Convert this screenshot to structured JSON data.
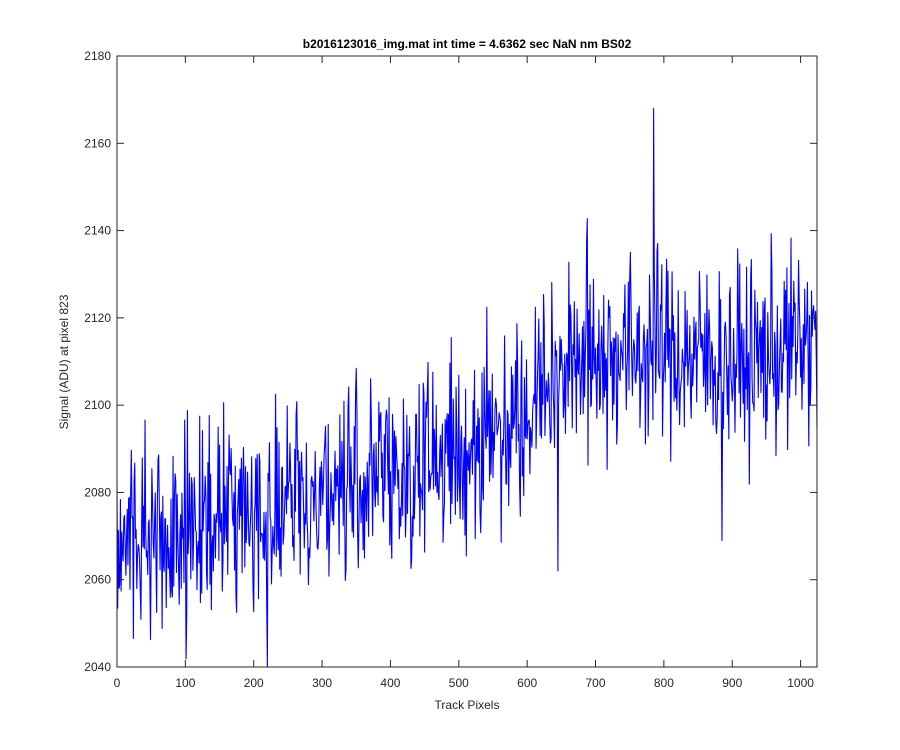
{
  "chart_data": {
    "type": "line",
    "title": "b2016123016_img.mat int time = 4.6362 sec  NaN nm BS02",
    "xlabel": "Track Pixels",
    "ylabel": "Signal (ADU) at pixel 823",
    "xlim": [
      0,
      1024
    ],
    "ylim": [
      2040,
      2180
    ],
    "x_ticks": [
      0,
      100,
      200,
      300,
      400,
      500,
      600,
      700,
      800,
      900,
      1000
    ],
    "y_ticks": [
      2040,
      2060,
      2080,
      2100,
      2120,
      2140,
      2160,
      2180
    ],
    "grid": false,
    "legend": "none",
    "series": [
      {
        "color": "#0000ff",
        "x": [
          0,
          20,
          40,
          60,
          80,
          100,
          120,
          140,
          160,
          180,
          200,
          220,
          240,
          260,
          280,
          300,
          320,
          340,
          360,
          380,
          400,
          420,
          440,
          460,
          480,
          500,
          520,
          540,
          560,
          580,
          600,
          620,
          640,
          660,
          680,
          700,
          720,
          740,
          760,
          780,
          800,
          820,
          840,
          860,
          880,
          900,
          920,
          940,
          960,
          980,
          1000,
          1020
        ],
        "values": [
          2068,
          2069,
          2070,
          2071,
          2071,
          2072,
          2073,
          2073,
          2074,
          2075,
          2076,
          2076,
          2077,
          2078,
          2079,
          2080,
          2081,
          2082,
          2083,
          2084,
          2084,
          2085,
          2086,
          2087,
          2088,
          2089,
          2091,
          2093,
          2095,
          2098,
          2101,
          2104,
          2107,
          2109,
          2111,
          2112,
          2112,
          2112,
          2112,
          2113,
          2113,
          2112,
          2111,
          2111,
          2110,
          2110,
          2110,
          2111,
          2112,
          2113,
          2114,
          2114
        ],
        "noise_amplitude": 12,
        "annotated_extremes": [
          {
            "x": 220,
            "y": 2040
          },
          {
            "x": 785,
            "y": 2168
          },
          {
            "x": 645,
            "y": 2062
          },
          {
            "x": 885,
            "y": 2069
          }
        ]
      }
    ]
  }
}
